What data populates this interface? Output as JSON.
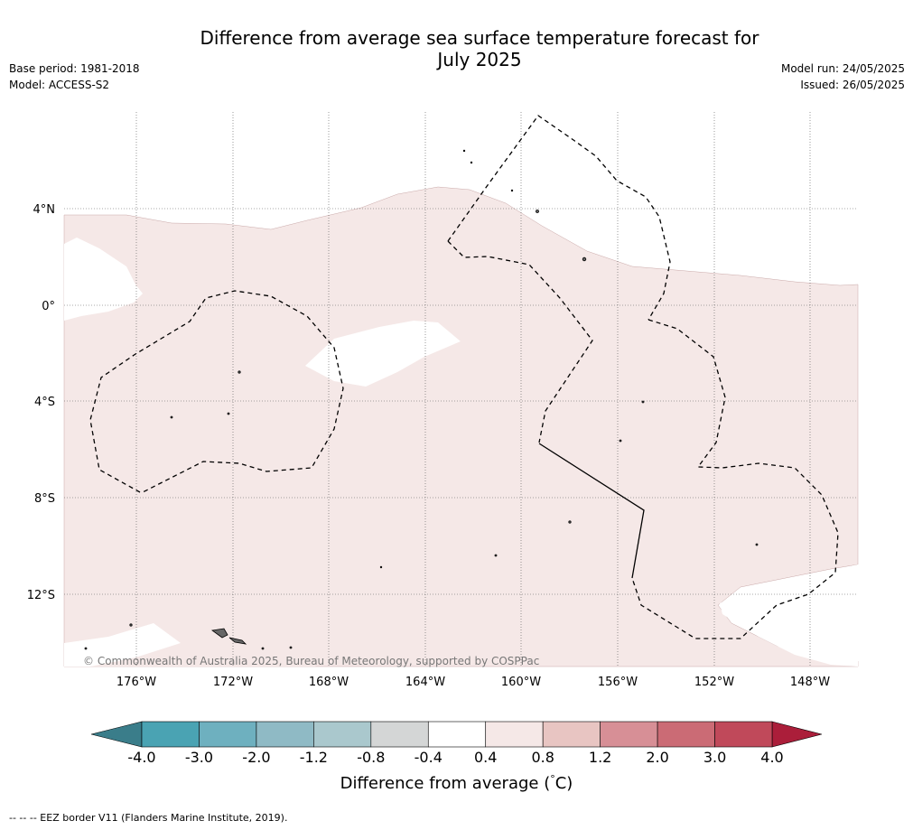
{
  "header": {
    "title_line1": "Difference from average sea surface temperature forecast for",
    "title_line2": "July 2025",
    "base_period": "Base period: 1981-2018",
    "model": "Model: ACCESS-S2",
    "model_run": "Model run: 24/05/2025",
    "issued": "Issued: 26/05/2025"
  },
  "map": {
    "lat_labels": [
      "4°N",
      "0°",
      "4°S",
      "8°S",
      "12°S"
    ],
    "lon_labels": [
      "176°W",
      "172°W",
      "168°W",
      "164°W",
      "160°W",
      "156°W",
      "152°W",
      "148°W"
    ],
    "copyright": "© Commonwealth of Australia 2025, Bureau of Meteorology, supported by COSPPac",
    "anomaly_fill_color": "#f5e8e7",
    "neutral_fill_color": "#ffffff"
  },
  "colorbar": {
    "title": "Difference from average (°C)",
    "title_prefix": "Difference from average (",
    "title_suffix": "C)",
    "title_degree": "°",
    "labels": [
      "-4.0",
      "-3.0",
      "-2.0",
      "-1.2",
      "-0.8",
      "-0.4",
      "0.4",
      "0.8",
      "1.2",
      "2.0",
      "3.0",
      "4.0"
    ],
    "colors": [
      "#4aa3b3",
      "#6eb0bf",
      "#8fbac5",
      "#aac8cd",
      "#d4d6d6",
      "#ffffff",
      "#f5e8e7",
      "#e8c5c2",
      "#d78f96",
      "#cb6b75",
      "#c0495a"
    ],
    "under_color": "#3a7d8a",
    "over_color": "#ab1e3a"
  },
  "footnote": "-- -- -- EEZ border V11 (Flanders Marine Institute, 2019)."
}
